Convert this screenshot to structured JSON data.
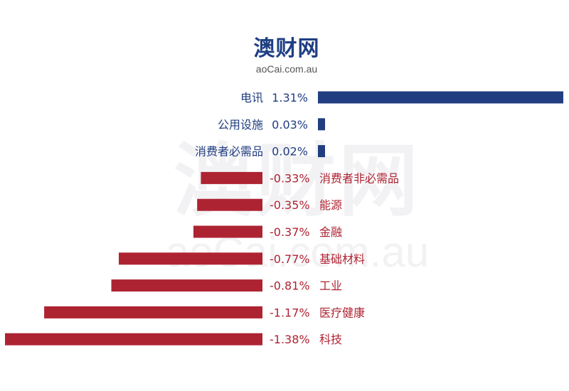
{
  "logo": {
    "name_cn": "澳财网",
    "domain": "aoCai.com.au"
  },
  "colors": {
    "positive": "#213e80",
    "negative": "#ae2332",
    "logo": "#1f3f84"
  },
  "chart_data": {
    "type": "bar",
    "orientation": "horizontal",
    "categories": [
      "电讯",
      "公用设施",
      "消费者必需品",
      "消费者非必需品",
      "能源",
      "金融",
      "基础材料",
      "工业",
      "医疗健康",
      "科技"
    ],
    "values": [
      1.31,
      0.03,
      0.02,
      -0.33,
      -0.35,
      -0.37,
      -0.77,
      -0.81,
      -1.17,
      -1.38
    ],
    "value_labels": [
      "1.31%",
      "0.03%",
      "0.02%",
      "-0.33%",
      "-0.35%",
      "-0.37%",
      "-0.77%",
      "-0.81%",
      "-1.17%",
      "-1.38%"
    ],
    "title": "",
    "xlabel": "",
    "ylabel": "",
    "grid": false,
    "legend": "none"
  }
}
